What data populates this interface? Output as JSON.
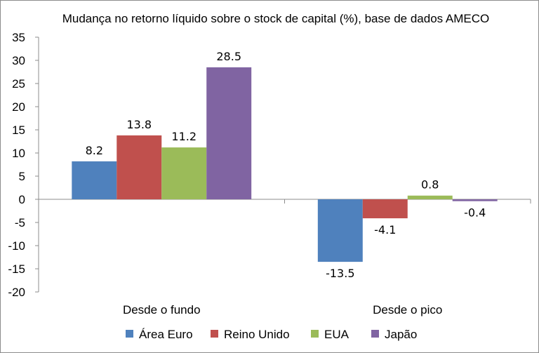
{
  "chart_data": {
    "type": "bar",
    "title": "Mudança no retorno líquido sobre o stock de capital (%), base de dados AMECO",
    "categories": [
      "Desde o fundo",
      "Desde o pico"
    ],
    "series": [
      {
        "name": "Área Euro",
        "color": "#4f81bd",
        "values": [
          8.2,
          -13.5
        ],
        "labels": [
          "8.2",
          "-13.5"
        ]
      },
      {
        "name": "Reino Unido",
        "color": "#c0504d",
        "values": [
          13.8,
          -4.1
        ],
        "labels": [
          "13.8",
          "-4.1"
        ]
      },
      {
        "name": "EUA",
        "color": "#9bbb59",
        "values": [
          11.2,
          0.8
        ],
        "labels": [
          "11.2",
          "0.8"
        ]
      },
      {
        "name": "Japão",
        "color": "#8064a2",
        "values": [
          28.5,
          -0.4
        ],
        "labels": [
          "28.5",
          "-0.4"
        ]
      }
    ],
    "ylim": [
      -20,
      35
    ],
    "yticks": [
      "35",
      "30",
      "25",
      "20",
      "15",
      "10",
      "5",
      "0",
      "-5",
      "-10",
      "-15",
      "-20"
    ],
    "grid": false,
    "legend": "bottom"
  }
}
